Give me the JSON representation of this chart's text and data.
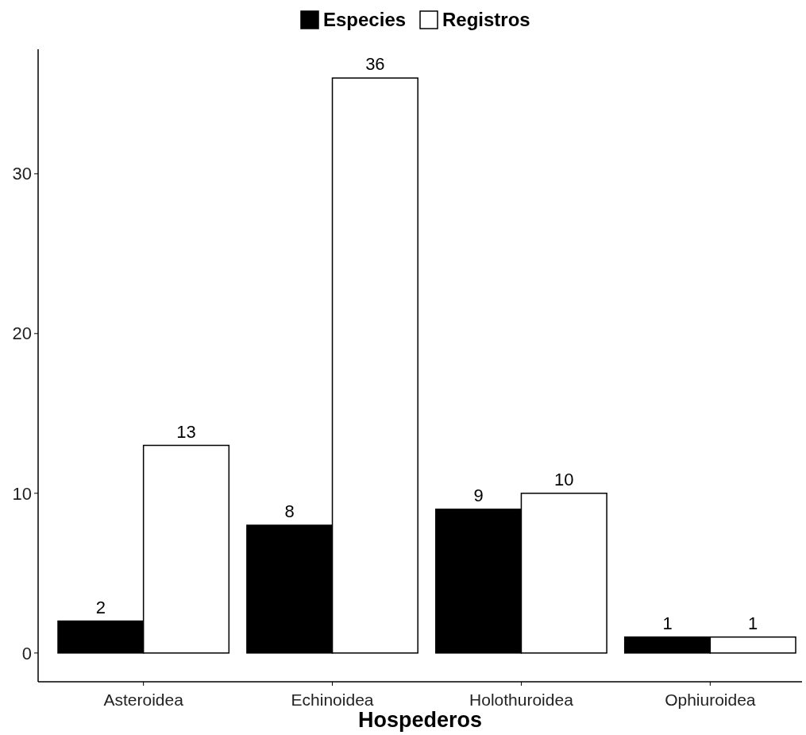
{
  "chart_data": {
    "type": "bar",
    "xlabel": "Hospederos",
    "categories": [
      "Asteroidea",
      "Echinoidea",
      "Holothuroidea",
      "Ophiuroidea"
    ],
    "series": [
      {
        "name": "Especies",
        "color": "#000000",
        "values": [
          2,
          8,
          9,
          1
        ]
      },
      {
        "name": "Registros",
        "color": "#ffffff",
        "values": [
          13,
          36,
          10,
          1
        ]
      }
    ],
    "ylim": [
      -1.8,
      37.8
    ],
    "yticks": [
      0,
      10,
      20,
      30
    ],
    "data_labels": true,
    "legend": "top",
    "grid": false
  }
}
